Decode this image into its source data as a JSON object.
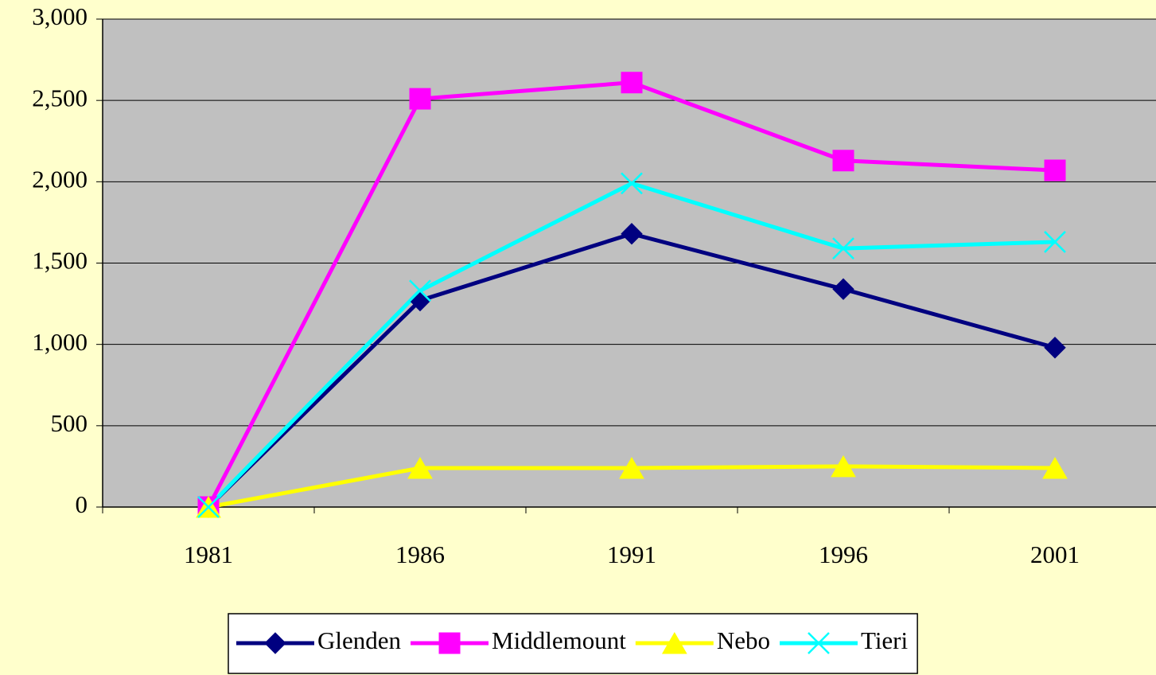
{
  "chart_data": {
    "type": "line",
    "categories": [
      "1981",
      "1986",
      "1991",
      "1996",
      "2001"
    ],
    "series": [
      {
        "name": "Glenden",
        "color": "#000080",
        "marker": "diamond",
        "values": [
          0,
          1270,
          1680,
          1340,
          980
        ]
      },
      {
        "name": "Middlemount",
        "color": "#FF00FF",
        "marker": "square",
        "values": [
          0,
          2510,
          2610,
          2130,
          2070
        ]
      },
      {
        "name": "Nebo",
        "color": "#FFFF00",
        "marker": "triangle",
        "values": [
          0,
          240,
          240,
          250,
          240
        ]
      },
      {
        "name": "Tieri",
        "color": "#00FFFF",
        "marker": "x",
        "values": [
          0,
          1330,
          1990,
          1590,
          1630
        ]
      }
    ],
    "ylim": [
      0,
      3000
    ],
    "yticks": [
      0,
      500,
      {
        "value": 1000,
        "label": "1,000"
      },
      {
        "value": 1500,
        "label": "1,500"
      },
      {
        "value": 2000,
        "label": "2,000"
      },
      {
        "value": 2500,
        "label": "2,500"
      },
      {
        "value": 3000,
        "label": "3,000"
      }
    ],
    "grid": true,
    "legend": "bottom"
  }
}
